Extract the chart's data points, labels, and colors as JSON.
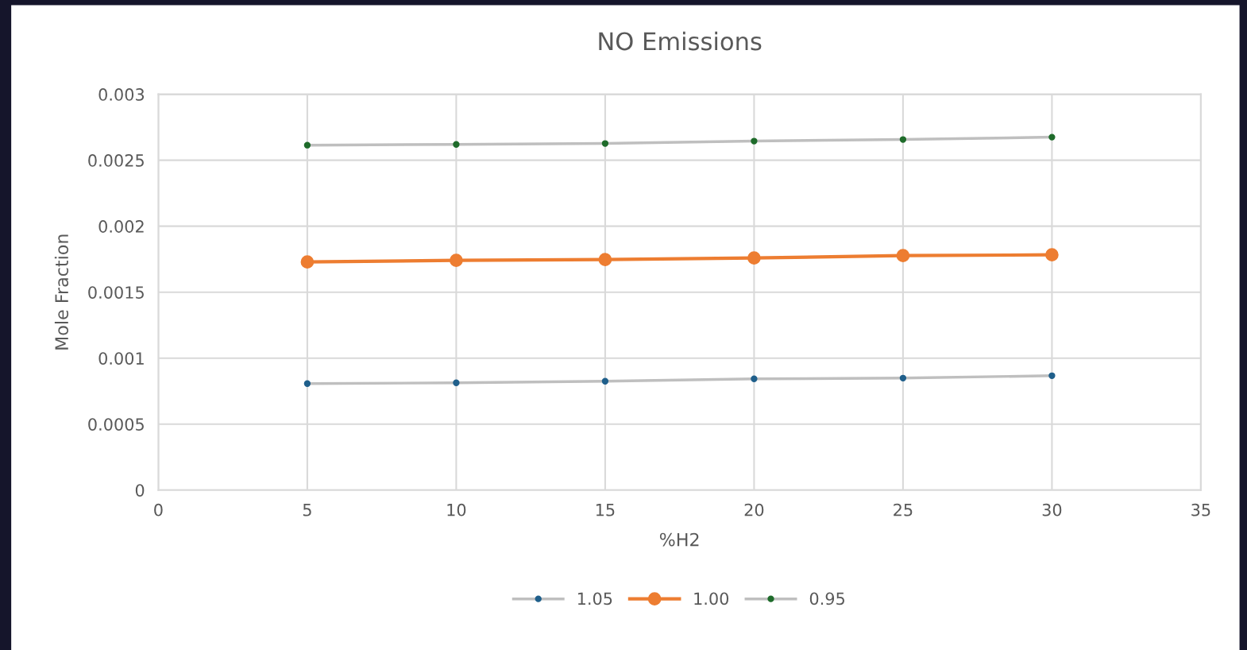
{
  "chart_data": {
    "type": "line",
    "title": "NO Emissions",
    "xlabel": "%H2",
    "ylabel": "Mole Fraction",
    "x": [
      5,
      10,
      15,
      20,
      25,
      30
    ],
    "series": [
      {
        "name": "1.05",
        "color": "#bfbfbf",
        "colors": [
          "#1f5f8b",
          "#1f5f8b",
          "#1f5f8b",
          "#1f5f8b",
          "#1f5f8b",
          "#1f5f8b"
        ],
        "values": [
          0.000807,
          0.000813,
          0.000825,
          0.000843,
          0.000849,
          0.000867
        ]
      },
      {
        "name": "1.00",
        "color": "#ed7d31",
        "values": [
          0.001729,
          0.001741,
          0.001747,
          0.001759,
          0.001777,
          0.001783
        ]
      },
      {
        "name": "0.95",
        "color": "#bfbfbf",
        "colors": [
          "#1e6b2a",
          "#1e6b2a",
          "#1e6b2a",
          "#1e6b2a",
          "#1e6b2a",
          "#1e6b2a"
        ],
        "values": [
          0.002614,
          0.00262,
          0.002627,
          0.002645,
          0.002657,
          0.002675
        ]
      }
    ],
    "xlim": [
      0,
      35
    ],
    "xticks": [
      0,
      5,
      10,
      15,
      20,
      25,
      30,
      35
    ],
    "ylim": [
      0,
      0.003
    ],
    "yticks": [
      0,
      0.0005,
      0.001,
      0.0015,
      0.002,
      0.0025,
      0.003
    ],
    "grid": true,
    "legend": "bottom",
    "marker": "circle",
    "line_style": "solid"
  }
}
